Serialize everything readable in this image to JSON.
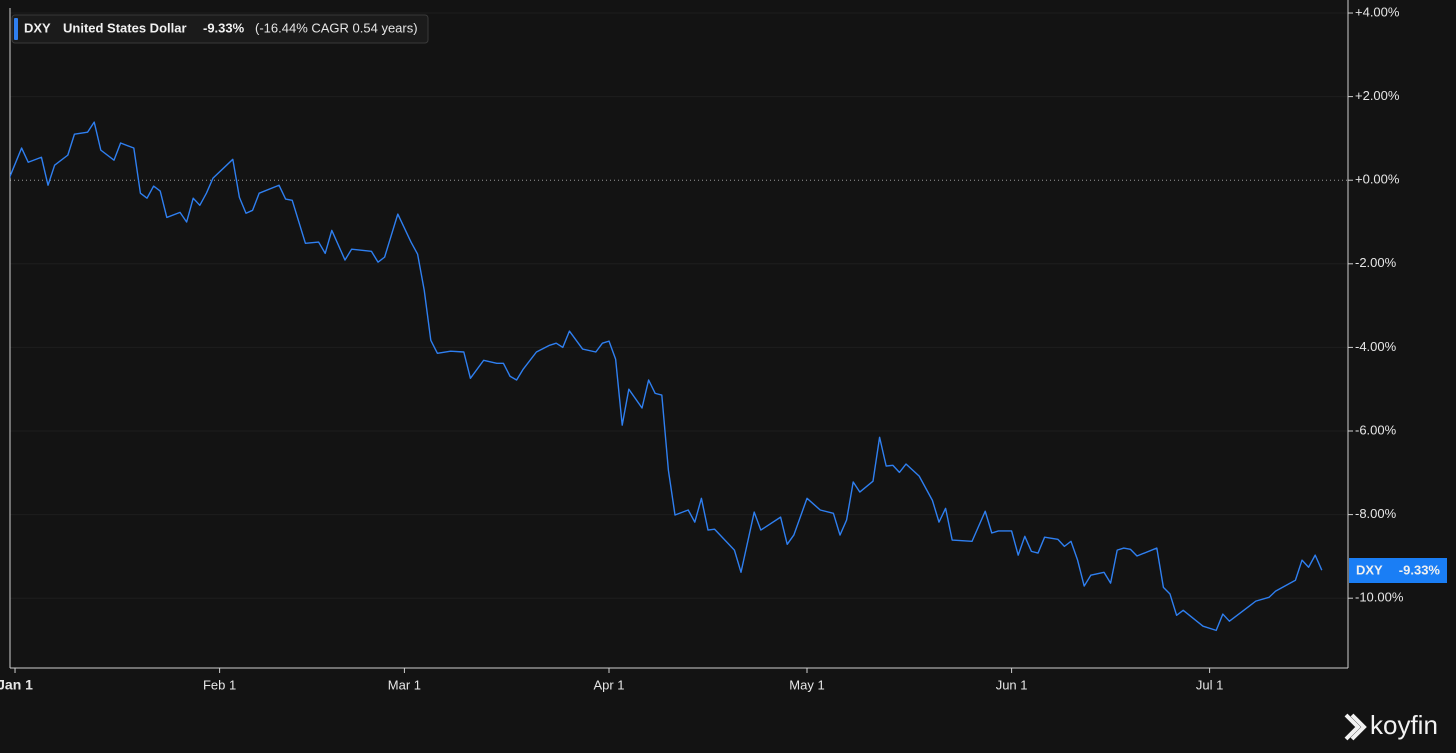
{
  "chart_data": {
    "type": "line",
    "legend": {
      "symbol": "DXY",
      "name": "United States Dollar",
      "change": "-9.33%",
      "cagr": "(-16.44% CAGR 0.54 years)"
    },
    "watermark": "koyfin",
    "x": [
      -1,
      1,
      2,
      4,
      5,
      6,
      8,
      9,
      11,
      12,
      13,
      15,
      16,
      18,
      19,
      20,
      21,
      22,
      23,
      25,
      26,
      27,
      28,
      29,
      30,
      33,
      34,
      35,
      36,
      37,
      40,
      41,
      42,
      44,
      46,
      47,
      48,
      50,
      51,
      54,
      55,
      56,
      58,
      60,
      61,
      62,
      63,
      64,
      66,
      68,
      69,
      71,
      73,
      74,
      75,
      76,
      77,
      79,
      81,
      82,
      83,
      84,
      86,
      88,
      89,
      90,
      91,
      92,
      93,
      95,
      96,
      97,
      98,
      99,
      100,
      102,
      103,
      104,
      105,
      106,
      109,
      110,
      112,
      113,
      116,
      117,
      118,
      120,
      122,
      124,
      125,
      126,
      127,
      128,
      130,
      131,
      132,
      133,
      134,
      135,
      137,
      139,
      140,
      141,
      142,
      145,
      147,
      148,
      149,
      151,
      152,
      153,
      154,
      155,
      156,
      158,
      159,
      160,
      161,
      162,
      163,
      165,
      166,
      167,
      168,
      169,
      170,
      173,
      174,
      175,
      176,
      177,
      180,
      182,
      183,
      184,
      187,
      188,
      190,
      191,
      194,
      195,
      196,
      197,
      198
    ],
    "series": [
      {
        "name": "DXY",
        "color": "#2f7ff0",
        "values": [
          0,
          0.77,
          0.43,
          0.55,
          -0.12,
          0.36,
          0.6,
          1.1,
          1.15,
          1.39,
          0.72,
          0.48,
          0.89,
          0.77,
          -0.31,
          -0.43,
          -0.14,
          -0.26,
          -0.89,
          -0.77,
          -1.0,
          -0.43,
          -0.6,
          -0.31,
          0.05,
          0.5,
          -0.41,
          -0.79,
          -0.72,
          -0.31,
          -0.12,
          -0.45,
          -0.48,
          -1.51,
          -1.48,
          -1.75,
          -1.2,
          -1.91,
          -1.65,
          -1.7,
          -1.96,
          -1.84,
          -0.81,
          -1.48,
          -1.77,
          -2.63,
          -3.83,
          -4.14,
          -4.09,
          -4.11,
          -4.74,
          -4.31,
          -4.38,
          -4.38,
          -4.69,
          -4.78,
          -4.52,
          -4.11,
          -3.95,
          -3.9,
          -4.0,
          -3.61,
          -4.04,
          -4.11,
          -3.9,
          -3.85,
          -4.28,
          -5.86,
          -5.0,
          -5.45,
          -4.78,
          -5.1,
          -5.14,
          -6.94,
          -8.01,
          -7.89,
          -8.18,
          -7.61,
          -8.37,
          -8.35,
          -8.85,
          -9.38,
          -7.94,
          -8.37,
          -8.06,
          -8.71,
          -8.49,
          -7.61,
          -7.89,
          -7.97,
          -8.49,
          -8.13,
          -7.22,
          -7.46,
          -7.2,
          -6.15,
          -6.84,
          -6.82,
          -6.99,
          -6.79,
          -7.08,
          -7.66,
          -8.18,
          -7.85,
          -8.61,
          -8.64,
          -7.92,
          -8.44,
          -8.39,
          -8.39,
          -8.97,
          -8.52,
          -8.88,
          -8.92,
          -8.54,
          -8.59,
          -8.76,
          -8.64,
          -9.09,
          -9.71,
          -9.45,
          -9.38,
          -9.64,
          -8.85,
          -8.8,
          -8.83,
          -8.99,
          -8.8,
          -9.74,
          -9.9,
          -10.41,
          -10.29,
          -10.67,
          -10.77,
          -10.38,
          -10.55,
          -10.19,
          -10.07,
          -9.98,
          -9.83,
          -9.57,
          -9.09,
          -9.26,
          -8.97,
          -9.33
        ]
      }
    ],
    "xlim": [
      -0.76,
      201.97
    ],
    "xticks": [
      {
        "value": 0,
        "label": "Jan 1"
      },
      {
        "value": 31,
        "label": "Feb 1"
      },
      {
        "value": 59,
        "label": "Mar 1"
      },
      {
        "value": 90,
        "label": "Apr 1"
      },
      {
        "value": 120,
        "label": "May 1"
      },
      {
        "value": 151,
        "label": "Jun 1"
      },
      {
        "value": 181,
        "label": "Jul 1"
      }
    ],
    "ylim": [
      -11.67,
      4.12
    ],
    "yticks": [
      {
        "value": 4,
        "label": "+4.00%"
      },
      {
        "value": 2,
        "label": "+2.00%"
      },
      {
        "value": 0,
        "label": "+0.00%"
      },
      {
        "value": -2,
        "label": "-2.00%"
      },
      {
        "value": -4,
        "label": "-4.00%"
      },
      {
        "value": -6,
        "label": "-6.00%"
      },
      {
        "value": -8,
        "label": "-8.00%"
      },
      {
        "value": -10,
        "label": "-10.00%"
      }
    ],
    "grid": true
  }
}
